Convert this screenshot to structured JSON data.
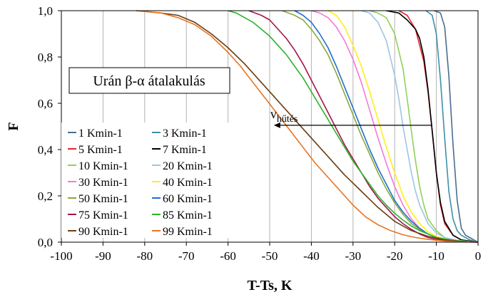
{
  "chart_data": {
    "type": "line",
    "title": "",
    "xlabel": "T-Ts, K",
    "ylabel": "F",
    "xlim": [
      -100,
      0
    ],
    "ylim": [
      0.0,
      1.0
    ],
    "x_ticks": [
      "-100",
      "-90",
      "-80",
      "-70",
      "-60",
      "-50",
      "-40",
      "-30",
      "-20",
      "-10",
      "0"
    ],
    "y_ticks": [
      "0,0",
      "0,2",
      "0,4",
      "0,6",
      "0,8",
      "1,0"
    ],
    "grid": "vertical",
    "annotation_box": "Urán β-α átalakulás",
    "arrow_label_main": "v",
    "arrow_label_sub": "hűtés",
    "arrow": {
      "from_x": -11,
      "to_x": -49,
      "y": 0.505
    },
    "legend_location": "lower-left",
    "series": [
      {
        "name": "1 Kmin-1",
        "color": "#4a6d8f",
        "x": [
          -10.5,
          -9,
          -8,
          -7,
          -6,
          -5,
          -4,
          -3,
          -2,
          -1,
          0
        ],
        "y": [
          1.0,
          0.99,
          0.93,
          0.72,
          0.42,
          0.18,
          0.06,
          0.03,
          0.02,
          0.01,
          0.0
        ]
      },
      {
        "name": "3 Kmin-1",
        "color": "#3f8fa8",
        "x": [
          -12.5,
          -11,
          -10,
          -9,
          -8,
          -7,
          -6,
          -5,
          -4,
          -2,
          0
        ],
        "y": [
          1.0,
          0.98,
          0.9,
          0.7,
          0.45,
          0.22,
          0.1,
          0.05,
          0.03,
          0.01,
          0.0
        ]
      },
      {
        "name": "5 Kmin-1",
        "color": "#e8232d",
        "x": [
          -19,
          -17,
          -15,
          -13,
          -12,
          -11,
          -10,
          -9,
          -8,
          -6,
          -4,
          -2,
          0
        ],
        "y": [
          1.0,
          0.98,
          0.92,
          0.78,
          0.65,
          0.48,
          0.3,
          0.16,
          0.08,
          0.03,
          0.01,
          0.005,
          0.0
        ]
      },
      {
        "name": "7 Kmin-1",
        "color": "#000000",
        "x": [
          -22,
          -19,
          -17,
          -15,
          -14,
          -13,
          -12,
          -11,
          -10,
          -9,
          -8,
          -6,
          -4,
          -2,
          0
        ],
        "y": [
          1.0,
          0.99,
          0.96,
          0.92,
          0.88,
          0.8,
          0.66,
          0.48,
          0.3,
          0.17,
          0.09,
          0.03,
          0.01,
          0.005,
          0.0
        ]
      },
      {
        "name": "10 Kmin-1",
        "color": "#8fd15a",
        "x": [
          -26,
          -24,
          -22,
          -20,
          -18,
          -17,
          -16,
          -15,
          -14,
          -13,
          -12,
          -10,
          -8,
          -6,
          -3,
          0
        ],
        "y": [
          1.0,
          0.99,
          0.97,
          0.9,
          0.75,
          0.62,
          0.48,
          0.35,
          0.24,
          0.16,
          0.1,
          0.05,
          0.02,
          0.01,
          0.005,
          0.0
        ]
      },
      {
        "name": "20 Kmin-1",
        "color": "#9ec5e2",
        "x": [
          -28,
          -26,
          -24,
          -22,
          -20,
          -19,
          -18,
          -17,
          -16,
          -15,
          -14,
          -12,
          -10,
          -8,
          -5,
          -2,
          0
        ],
        "y": [
          1.0,
          0.99,
          0.95,
          0.87,
          0.72,
          0.62,
          0.5,
          0.4,
          0.3,
          0.22,
          0.16,
          0.08,
          0.04,
          0.02,
          0.008,
          0.002,
          0.0
        ]
      },
      {
        "name": "30 Kmin-1",
        "color": "#f27ad6",
        "x": [
          -40,
          -38,
          -36,
          -34,
          -32,
          -30,
          -28,
          -26,
          -24,
          -22,
          -20,
          -18,
          -16,
          -14,
          -12,
          -10,
          -6,
          -2,
          0
        ],
        "y": [
          1.0,
          0.99,
          0.97,
          0.93,
          0.87,
          0.79,
          0.69,
          0.57,
          0.45,
          0.34,
          0.24,
          0.16,
          0.1,
          0.06,
          0.035,
          0.02,
          0.008,
          0.002,
          0.0
        ]
      },
      {
        "name": "40 Kmin-1",
        "color": "#ffee1a",
        "x": [
          -36,
          -34,
          -32,
          -30,
          -28,
          -26,
          -24,
          -22,
          -20,
          -18,
          -16,
          -14,
          -12,
          -10,
          -7,
          -4,
          0
        ],
        "y": [
          1.0,
          0.98,
          0.93,
          0.85,
          0.76,
          0.65,
          0.53,
          0.41,
          0.3,
          0.2,
          0.13,
          0.08,
          0.045,
          0.025,
          0.01,
          0.004,
          0.0
        ]
      },
      {
        "name": "50 Kmin-1",
        "color": "#8aa83d",
        "x": [
          -47,
          -44,
          -42,
          -40,
          -38,
          -36,
          -34,
          -32,
          -30,
          -28,
          -26,
          -24,
          -22,
          -20,
          -18,
          -16,
          -14,
          -12,
          -10,
          -7,
          -4,
          0
        ],
        "y": [
          1.0,
          0.98,
          0.96,
          0.92,
          0.87,
          0.81,
          0.73,
          0.64,
          0.55,
          0.46,
          0.38,
          0.3,
          0.23,
          0.17,
          0.12,
          0.08,
          0.055,
          0.035,
          0.02,
          0.01,
          0.004,
          0.0
        ]
      },
      {
        "name": "60 Kmin-1",
        "color": "#1f6fd1",
        "x": [
          -44,
          -42,
          -40,
          -38,
          -36,
          -34,
          -32,
          -30,
          -28,
          -26,
          -24,
          -22,
          -20,
          -18,
          -16,
          -14,
          -12,
          -10,
          -7,
          -4,
          0
        ],
        "y": [
          1.0,
          0.98,
          0.95,
          0.9,
          0.84,
          0.76,
          0.67,
          0.58,
          0.49,
          0.4,
          0.32,
          0.25,
          0.18,
          0.13,
          0.09,
          0.06,
          0.035,
          0.02,
          0.01,
          0.004,
          0.0
        ]
      },
      {
        "name": "75 Kmin-1",
        "color": "#a3164a",
        "x": [
          -55,
          -52,
          -50,
          -48,
          -46,
          -44,
          -42,
          -40,
          -38,
          -36,
          -34,
          -32,
          -30,
          -28,
          -26,
          -24,
          -22,
          -20,
          -18,
          -16,
          -14,
          -12,
          -10,
          -6,
          -2,
          0
        ],
        "y": [
          1.0,
          0.98,
          0.96,
          0.92,
          0.88,
          0.83,
          0.77,
          0.7,
          0.63,
          0.56,
          0.49,
          0.42,
          0.36,
          0.3,
          0.24,
          0.19,
          0.15,
          0.11,
          0.08,
          0.055,
          0.035,
          0.02,
          0.012,
          0.004,
          0.001,
          0.0
        ]
      },
      {
        "name": "85 Kmin-1",
        "color": "#2cb52c",
        "x": [
          -60,
          -58,
          -56,
          -54,
          -52,
          -50,
          -48,
          -46,
          -44,
          -42,
          -40,
          -38,
          -36,
          -34,
          -32,
          -30,
          -28,
          -26,
          -24,
          -22,
          -20,
          -18,
          -16,
          -14,
          -12,
          -10,
          -6,
          -2,
          0
        ],
        "y": [
          1.0,
          0.99,
          0.97,
          0.95,
          0.92,
          0.89,
          0.85,
          0.81,
          0.76,
          0.71,
          0.65,
          0.59,
          0.53,
          0.47,
          0.41,
          0.35,
          0.3,
          0.25,
          0.2,
          0.16,
          0.125,
          0.095,
          0.07,
          0.05,
          0.035,
          0.02,
          0.008,
          0.002,
          0.0
        ]
      },
      {
        "name": "90 Kmin-1",
        "color": "#6b3d12",
        "x": [
          -82,
          -76,
          -72,
          -68,
          -64,
          -60,
          -56,
          -52,
          -48,
          -44,
          -40,
          -36,
          -32,
          -28,
          -24,
          -20,
          -16,
          -12,
          -8,
          -4,
          0
        ],
        "y": [
          1.0,
          0.99,
          0.98,
          0.95,
          0.9,
          0.84,
          0.77,
          0.69,
          0.61,
          0.53,
          0.45,
          0.37,
          0.29,
          0.22,
          0.15,
          0.09,
          0.05,
          0.025,
          0.01,
          0.003,
          0.0
        ]
      },
      {
        "name": "99 Kmin-1",
        "color": "#e8731f",
        "x": [
          -82,
          -76,
          -72,
          -68,
          -64,
          -60,
          -57,
          -54,
          -51,
          -48,
          -45,
          -42,
          -39,
          -36,
          -33,
          -30,
          -27,
          -24,
          -21,
          -18,
          -15,
          -12,
          -8,
          -4,
          0
        ],
        "y": [
          1.0,
          0.99,
          0.97,
          0.94,
          0.89,
          0.82,
          0.76,
          0.69,
          0.62,
          0.55,
          0.48,
          0.41,
          0.34,
          0.28,
          0.22,
          0.16,
          0.11,
          0.075,
          0.05,
          0.032,
          0.02,
          0.012,
          0.005,
          0.001,
          0.0
        ]
      }
    ]
  }
}
